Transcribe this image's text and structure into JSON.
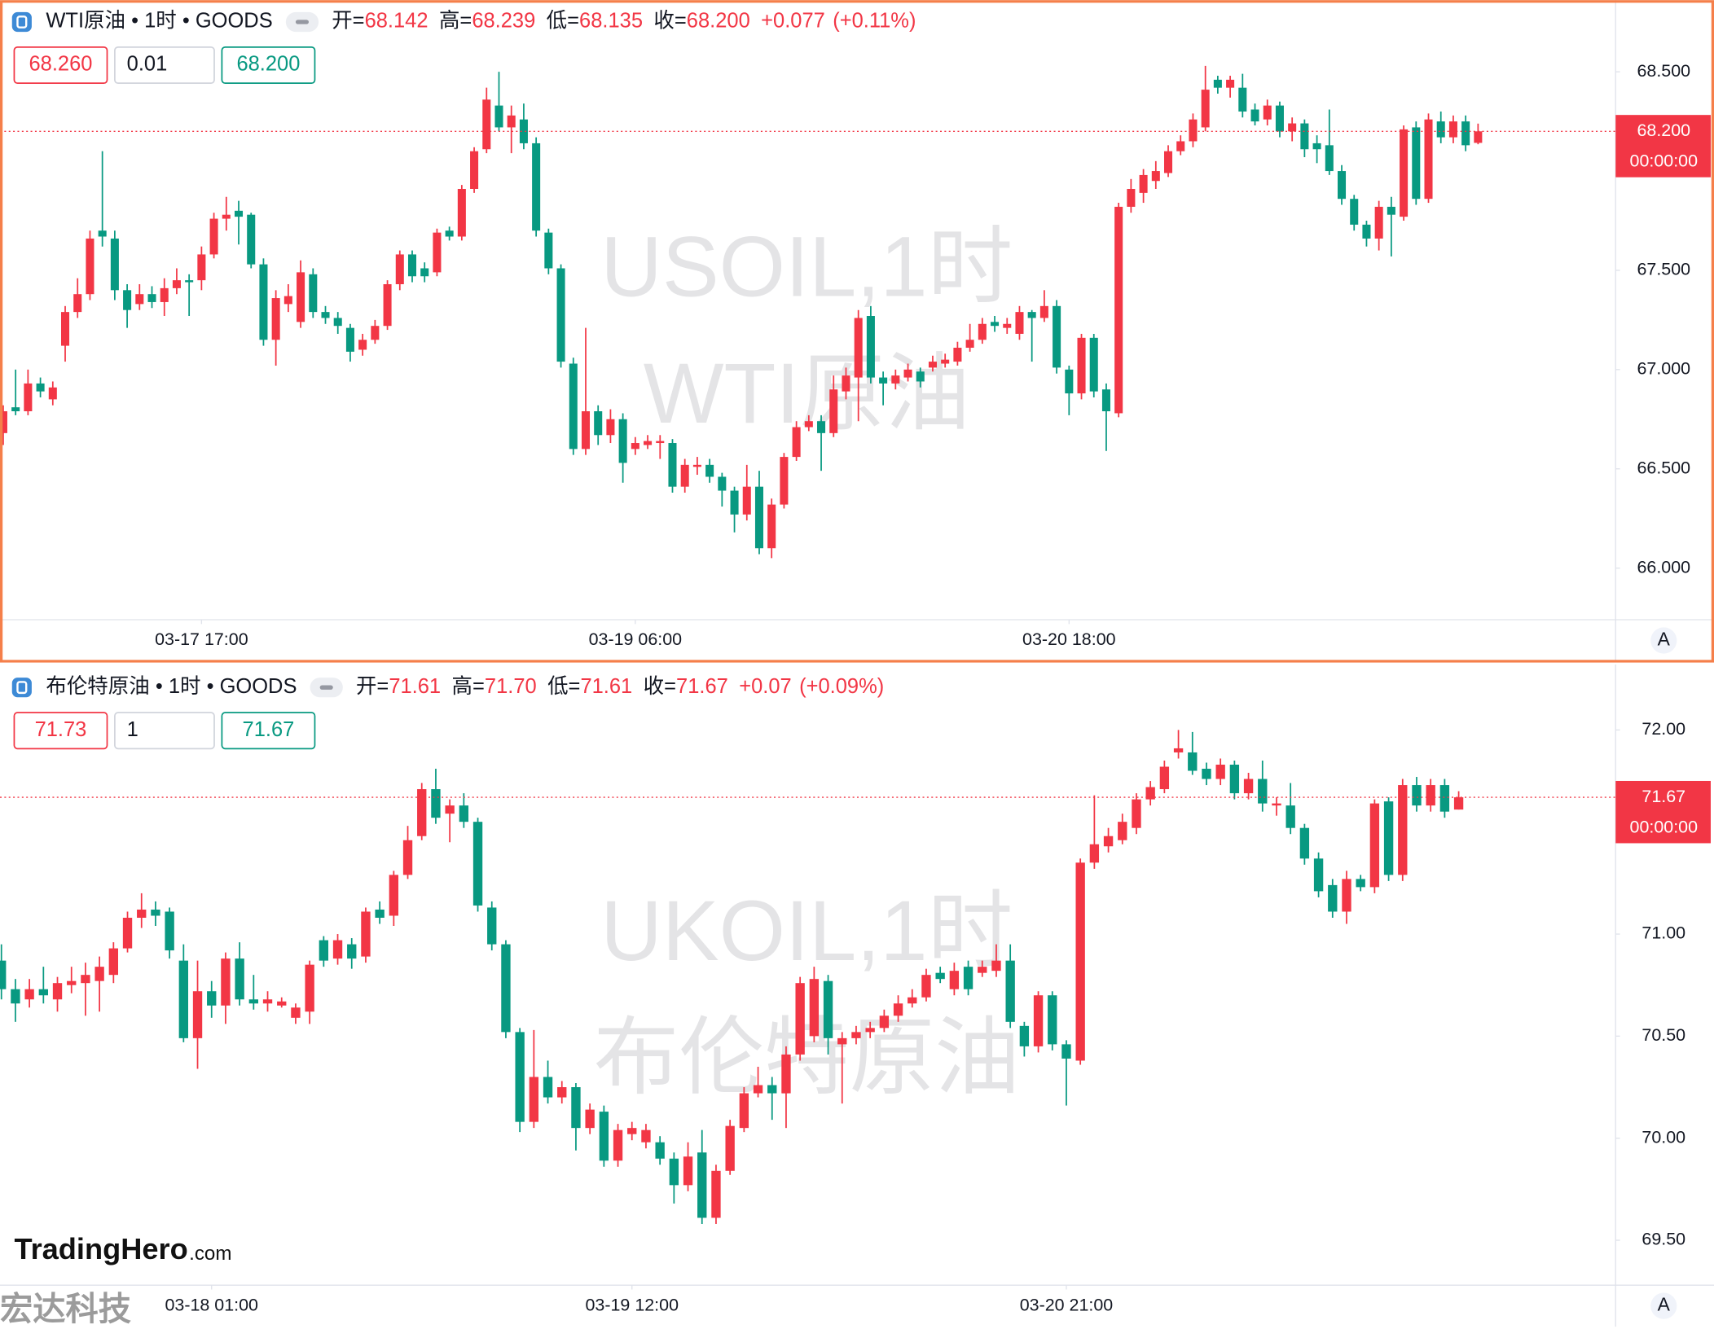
{
  "chart_data": [
    {
      "type": "candlestick",
      "highlighted": true,
      "symbol": "WTI原油 • 1时 • GOODS",
      "quote_labels": [
        "开=",
        "高=",
        "低=",
        "收="
      ],
      "quote_values": [
        {
          "value": 68.142,
          "label": "68.142"
        },
        {
          "value": 68.239,
          "label": "68.239"
        },
        {
          "value": 68.135,
          "label": "68.135"
        },
        {
          "value": 68.2,
          "label": "68.200"
        }
      ],
      "change": {
        "value": 0.077,
        "label": "+0.077"
      },
      "change_pct": {
        "value": 0.11,
        "label": "(+0.11%)"
      },
      "bid": {
        "value": 68.26,
        "label": "68.260"
      },
      "quantity": 0.01,
      "ask": {
        "value": 68.2,
        "label": "68.200"
      },
      "watermark": [
        "USOIL,1时",
        "WTI原油"
      ],
      "last_price": {
        "value": 68.2,
        "label": "68.200"
      },
      "countdown": "00:00:00",
      "scale_button": "A",
      "up_color": "#f23645",
      "down_color": "#089981",
      "ylim": [
        65.74,
        68.85
      ],
      "yticks": [
        {
          "value": 68.5,
          "label": "68.500"
        },
        {
          "value": 68.0,
          "label": "68.000"
        },
        {
          "value": 67.5,
          "label": "67.500"
        },
        {
          "value": 67.0,
          "label": "67.000"
        },
        {
          "value": 66.5,
          "label": "66.500"
        },
        {
          "value": 66.0,
          "label": "66.000"
        }
      ],
      "xlim": [
        -0.26,
        130.1
      ],
      "xticks": [
        {
          "value": 16,
          "label": "03-17 17:00"
        },
        {
          "value": 51,
          "label": "03-19 06:00"
        },
        {
          "value": 86,
          "label": "03-20 18:00"
        }
      ],
      "open": [
        66.68,
        66.81,
        66.79,
        66.93,
        66.85,
        67.12,
        67.29,
        67.38,
        67.7,
        67.66,
        67.4,
        67.33,
        67.38,
        67.34,
        67.41,
        67.45,
        67.45,
        67.58,
        67.76,
        67.8,
        67.78,
        67.53,
        67.15,
        67.33,
        67.24,
        67.48,
        67.29,
        67.26,
        67.21,
        67.1,
        67.15,
        67.22,
        67.43,
        67.58,
        67.51,
        67.49,
        67.7,
        67.67,
        67.91,
        68.11,
        68.33,
        68.22,
        68.26,
        68.14,
        67.69,
        67.51,
        67.03,
        66.6,
        66.79,
        66.67,
        66.75,
        66.6,
        66.62,
        66.63,
        66.63,
        66.41,
        66.51,
        66.52,
        66.46,
        66.39,
        66.27,
        66.41,
        66.1,
        66.32,
        66.56,
        66.71,
        66.74,
        66.68,
        66.89,
        66.96,
        67.27,
        66.96,
        66.93,
        66.96,
        66.99,
        67.01,
        67.03,
        67.04,
        67.11,
        67.15,
        67.24,
        67.21,
        67.18,
        67.29,
        67.26,
        67.32,
        67.0,
        66.88,
        67.16,
        66.9,
        66.78,
        67.82,
        67.89,
        67.95,
        67.99,
        68.1,
        68.15,
        68.22,
        68.46,
        68.42,
        68.42,
        68.31,
        68.26,
        68.33,
        68.2,
        68.24,
        68.14,
        68.13,
        68.0,
        67.86,
        67.73,
        67.66,
        67.82,
        67.77,
        68.22,
        67.86,
        68.25,
        68.17,
        68.25,
        68.142
      ],
      "high": [
        66.82,
        67.0,
        67.0,
        66.96,
        66.94,
        67.32,
        67.46,
        67.7,
        68.1,
        67.7,
        67.43,
        67.43,
        67.42,
        67.46,
        67.51,
        67.48,
        67.62,
        67.79,
        67.87,
        67.85,
        67.79,
        67.56,
        67.4,
        67.43,
        67.55,
        67.51,
        67.32,
        67.29,
        67.23,
        67.18,
        67.25,
        67.45,
        67.6,
        67.6,
        67.54,
        67.71,
        67.72,
        67.93,
        68.12,
        68.42,
        68.5,
        68.33,
        68.34,
        68.17,
        67.71,
        67.53,
        67.06,
        67.21,
        66.82,
        66.8,
        66.78,
        66.66,
        66.67,
        66.67,
        66.65,
        66.55,
        66.56,
        66.55,
        66.48,
        66.41,
        66.52,
        66.49,
        66.35,
        66.58,
        66.74,
        66.77,
        66.77,
        66.97,
        67.01,
        67.3,
        67.32,
        66.99,
        67.0,
        67.03,
        67.01,
        67.07,
        67.08,
        67.14,
        67.23,
        67.26,
        67.27,
        67.26,
        67.32,
        67.3,
        67.4,
        67.35,
        67.02,
        67.18,
        67.18,
        66.93,
        67.84,
        67.96,
        68.01,
        68.05,
        68.13,
        68.18,
        68.29,
        68.53,
        68.48,
        68.48,
        68.49,
        68.34,
        68.36,
        68.35,
        68.27,
        68.26,
        68.18,
        68.31,
        68.03,
        67.88,
        67.75,
        67.85,
        67.87,
        68.23,
        68.25,
        68.29,
        68.3,
        68.28,
        68.28,
        68.239
      ],
      "low": [
        66.62,
        66.77,
        66.77,
        66.86,
        66.82,
        67.04,
        67.26,
        67.35,
        67.62,
        67.35,
        67.21,
        67.3,
        67.31,
        67.27,
        67.38,
        67.27,
        67.4,
        67.56,
        67.7,
        67.63,
        67.51,
        67.12,
        67.02,
        67.29,
        67.21,
        67.26,
        67.23,
        67.18,
        67.04,
        67.07,
        67.13,
        67.2,
        67.4,
        67.44,
        67.44,
        67.47,
        67.65,
        67.65,
        67.89,
        68.09,
        68.2,
        68.09,
        68.11,
        67.67,
        67.48,
        67.01,
        66.57,
        66.57,
        66.62,
        66.63,
        66.43,
        66.57,
        66.6,
        66.55,
        66.38,
        66.38,
        66.47,
        66.43,
        66.31,
        66.18,
        66.24,
        66.07,
        66.05,
        66.3,
        66.54,
        66.69,
        66.49,
        66.66,
        66.85,
        66.74,
        66.93,
        66.82,
        66.9,
        66.94,
        66.91,
        66.99,
        67.01,
        67.02,
        67.09,
        67.13,
        67.19,
        67.18,
        67.15,
        67.04,
        67.24,
        66.98,
        66.77,
        66.85,
        66.86,
        66.59,
        66.76,
        67.79,
        67.84,
        67.91,
        67.97,
        68.08,
        68.12,
        68.2,
        68.39,
        68.37,
        68.27,
        68.23,
        68.23,
        68.17,
        68.15,
        68.07,
        68.04,
        67.98,
        67.83,
        67.7,
        67.62,
        67.6,
        67.57,
        67.75,
        67.83,
        67.84,
        68.14,
        68.14,
        68.1,
        68.135
      ],
      "close": [
        66.79,
        66.79,
        66.93,
        66.89,
        66.91,
        67.29,
        67.38,
        67.66,
        67.67,
        67.4,
        67.3,
        67.38,
        67.34,
        67.41,
        67.45,
        67.44,
        67.58,
        67.76,
        67.78,
        67.77,
        67.53,
        67.15,
        67.36,
        67.37,
        67.49,
        67.29,
        67.26,
        67.22,
        67.09,
        67.15,
        67.22,
        67.43,
        67.58,
        67.47,
        67.47,
        67.69,
        67.67,
        67.91,
        68.1,
        68.36,
        68.22,
        68.28,
        68.14,
        67.7,
        67.51,
        67.04,
        66.6,
        66.79,
        66.67,
        66.75,
        66.53,
        66.63,
        66.64,
        66.64,
        66.41,
        66.52,
        66.52,
        66.46,
        66.39,
        66.27,
        66.41,
        66.1,
        66.32,
        66.56,
        66.71,
        66.74,
        66.68,
        66.9,
        66.97,
        67.26,
        66.96,
        66.93,
        66.97,
        67.0,
        66.94,
        67.04,
        67.05,
        67.11,
        67.15,
        67.23,
        67.22,
        67.23,
        67.29,
        67.26,
        67.32,
        67.01,
        66.88,
        67.16,
        66.89,
        66.79,
        67.82,
        67.91,
        67.98,
        68.0,
        68.1,
        68.15,
        68.26,
        68.41,
        68.42,
        68.46,
        68.3,
        68.25,
        68.33,
        68.2,
        68.24,
        68.11,
        68.11,
        68.0,
        67.86,
        67.73,
        67.66,
        67.82,
        67.78,
        68.21,
        67.86,
        68.26,
        68.17,
        68.25,
        68.13,
        68.2
      ]
    },
    {
      "type": "candlestick",
      "highlighted": false,
      "symbol": "布伦特原油 • 1时 • GOODS",
      "quote_labels": [
        "开=",
        "高=",
        "低=",
        "收="
      ],
      "quote_values": [
        71.61,
        {
          "value": 71.7,
          "label": "71.70"
        },
        71.61,
        71.67
      ],
      "change": {
        "value": 0.07,
        "label": "+0.07"
      },
      "change_pct": {
        "value": 0.09,
        "label": "(+0.09%)"
      },
      "bid": 71.73,
      "quantity": 1,
      "ask": 71.67,
      "watermark": [
        "UKOIL,1时",
        "布伦特原油"
      ],
      "last_price": 71.67,
      "countdown": "00:00:00",
      "scale_button": "A",
      "up_color": "#f23645",
      "down_color": "#089981",
      "ylim": [
        69.28,
        72.31
      ],
      "yticks": [
        {
          "value": 72.0,
          "label": "72.00"
        },
        {
          "value": 71.5,
          "label": "71.50"
        },
        {
          "value": 71.0,
          "label": "71.00"
        },
        {
          "value": 70.5,
          "label": "70.50"
        },
        {
          "value": 70.0,
          "label": "70.00"
        },
        {
          "value": 69.5,
          "label": "69.50"
        }
      ],
      "xlim": [
        -0.1,
        115.2
      ],
      "xticks": [
        {
          "value": 15,
          "label": "03-18 01:00"
        },
        {
          "value": 45,
          "label": "03-19 12:00"
        },
        {
          "value": 76,
          "label": "03-20 21:00"
        }
      ],
      "open": [
        70.87,
        70.73,
        70.68,
        70.73,
        70.68,
        70.75,
        70.76,
        70.77,
        70.8,
        70.93,
        71.08,
        71.12,
        71.11,
        70.87,
        70.49,
        70.72,
        70.65,
        70.88,
        70.68,
        70.66,
        70.65,
        70.59,
        70.62,
        70.97,
        70.88,
        70.95,
        70.89,
        71.12,
        71.09,
        71.29,
        71.48,
        71.71,
        71.59,
        71.63,
        71.55,
        71.13,
        70.95,
        70.52,
        70.08,
        70.3,
        70.2,
        70.25,
        70.05,
        70.13,
        69.89,
        70.02,
        69.98,
        69.98,
        69.9,
        69.77,
        69.93,
        69.61,
        69.84,
        70.05,
        70.22,
        70.26,
        70.22,
        70.41,
        70.5,
        70.77,
        70.46,
        70.49,
        70.52,
        70.54,
        70.6,
        70.66,
        70.69,
        70.81,
        70.73,
        70.84,
        70.81,
        70.82,
        70.87,
        70.55,
        70.45,
        70.7,
        70.46,
        70.38,
        71.35,
        71.43,
        71.46,
        71.52,
        71.66,
        71.71,
        71.89,
        71.89,
        71.81,
        71.76,
        71.83,
        71.69,
        71.76,
        71.63,
        71.63,
        71.52,
        71.37,
        71.24,
        71.11,
        71.27,
        71.23,
        71.65,
        71.29,
        71.73,
        71.63,
        71.73,
        71.61
      ],
      "high": [
        70.95,
        70.78,
        70.78,
        70.84,
        70.79,
        70.84,
        70.86,
        70.89,
        70.96,
        71.11,
        71.2,
        71.16,
        71.13,
        70.95,
        70.87,
        70.77,
        70.91,
        70.96,
        70.8,
        70.72,
        70.69,
        70.66,
        70.87,
        70.99,
        71.0,
        70.98,
        71.13,
        71.16,
        71.31,
        71.53,
        71.74,
        71.81,
        71.66,
        71.69,
        71.57,
        71.16,
        70.97,
        70.54,
        70.53,
        70.38,
        70.28,
        70.27,
        70.17,
        70.16,
        70.07,
        70.08,
        70.07,
        70.01,
        69.93,
        69.98,
        70.04,
        69.87,
        70.09,
        70.25,
        70.35,
        70.3,
        70.45,
        70.79,
        70.84,
        70.8,
        70.52,
        70.55,
        70.57,
        70.63,
        70.7,
        70.73,
        70.83,
        70.84,
        70.86,
        70.87,
        70.87,
        70.95,
        70.95,
        70.57,
        70.72,
        70.72,
        70.48,
        71.37,
        71.68,
        71.52,
        71.59,
        71.69,
        71.75,
        71.85,
        72.0,
        71.99,
        71.84,
        71.86,
        71.85,
        71.79,
        71.85,
        71.67,
        71.74,
        71.54,
        71.4,
        71.27,
        71.31,
        71.29,
        71.66,
        71.67,
        71.76,
        71.77,
        71.76,
        71.76,
        71.7
      ],
      "low": [
        70.68,
        70.57,
        70.64,
        70.66,
        70.62,
        70.71,
        70.6,
        70.62,
        70.76,
        70.91,
        71.03,
        71.04,
        70.88,
        70.47,
        70.34,
        70.59,
        70.56,
        70.65,
        70.63,
        70.62,
        70.64,
        70.56,
        70.56,
        70.84,
        70.85,
        70.83,
        70.86,
        71.05,
        71.04,
        71.27,
        71.46,
        71.54,
        71.45,
        71.52,
        71.11,
        70.92,
        70.49,
        70.03,
        70.05,
        70.17,
        70.17,
        69.94,
        70.02,
        69.86,
        69.86,
        69.99,
        69.95,
        69.87,
        69.68,
        69.74,
        69.58,
        69.58,
        69.82,
        70.03,
        70.2,
        70.09,
        70.05,
        70.38,
        70.47,
        70.41,
        70.17,
        70.46,
        70.49,
        70.52,
        70.57,
        70.64,
        70.67,
        70.76,
        70.7,
        70.7,
        70.79,
        70.79,
        70.54,
        70.4,
        70.42,
        70.43,
        70.16,
        70.36,
        71.32,
        71.4,
        71.44,
        71.49,
        71.63,
        71.69,
        71.86,
        71.78,
        71.73,
        71.73,
        71.66,
        71.66,
        71.6,
        71.58,
        71.49,
        71.34,
        71.18,
        71.08,
        71.05,
        71.21,
        71.2,
        71.26,
        71.26,
        71.6,
        71.6,
        71.57,
        71.61
      ],
      "close": [
        70.73,
        70.66,
        70.73,
        70.7,
        70.76,
        70.77,
        70.8,
        70.84,
        70.93,
        71.08,
        71.12,
        71.09,
        70.92,
        70.49,
        70.72,
        70.65,
        70.88,
        70.68,
        70.66,
        70.68,
        70.67,
        70.64,
        70.85,
        70.87,
        70.97,
        70.88,
        71.11,
        71.08,
        71.29,
        71.46,
        71.71,
        71.57,
        71.63,
        71.55,
        71.14,
        70.95,
        70.52,
        70.08,
        70.3,
        70.2,
        70.25,
        70.05,
        70.14,
        69.89,
        70.04,
        70.05,
        70.04,
        69.9,
        69.77,
        69.91,
        69.61,
        69.84,
        70.06,
        70.22,
        70.26,
        70.22,
        70.41,
        70.76,
        70.78,
        70.49,
        70.49,
        70.52,
        70.54,
        70.6,
        70.66,
        70.69,
        70.8,
        70.78,
        70.82,
        70.73,
        70.84,
        70.87,
        70.57,
        70.45,
        70.7,
        70.46,
        70.39,
        71.35,
        71.44,
        71.48,
        71.55,
        71.66,
        71.72,
        71.82,
        71.91,
        71.8,
        71.76,
        71.83,
        71.69,
        71.76,
        71.64,
        71.64,
        71.52,
        71.37,
        71.21,
        71.11,
        71.27,
        71.23,
        71.64,
        71.29,
        71.73,
        71.63,
        71.73,
        71.6,
        71.67
      ]
    }
  ],
  "branding": {
    "logo": "TradingHero",
    "logo_suffix": ".com",
    "corner_mark": "宏达科技"
  }
}
